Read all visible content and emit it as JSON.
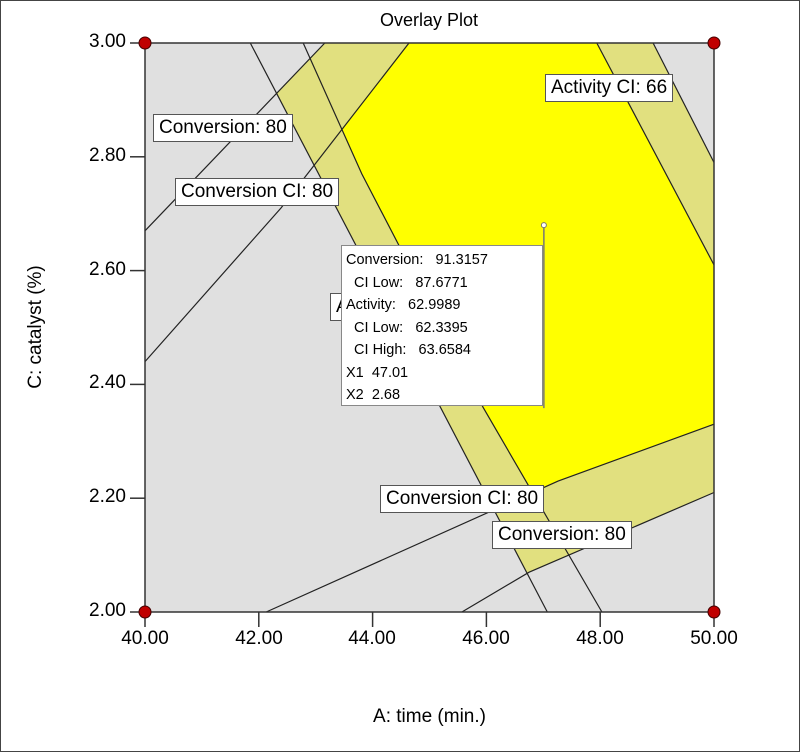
{
  "chart_data": {
    "type": "contour-overlay",
    "title": "Overlay Plot",
    "xlabel": "A: time (min.)",
    "ylabel": "C: catalyst (%)",
    "xlim": [
      40,
      50
    ],
    "ylim": [
      2,
      3
    ],
    "xticks": [
      "40.00",
      "42.00",
      "44.00",
      "46.00",
      "48.00",
      "50.00"
    ],
    "yticks": [
      "2.00",
      "2.20",
      "2.40",
      "2.60",
      "2.80",
      "3.00"
    ],
    "colors": {
      "background": "#e0e0e0",
      "ci_region": "#e1e07f",
      "feasible": "#ffff00",
      "design_point": "#c00000",
      "line": "#222222"
    },
    "contours": [
      {
        "id": "A",
        "label": "A",
        "points": [
          [
            41.85,
            3.0
          ],
          [
            47.07,
            2.0
          ]
        ]
      },
      {
        "id": "B",
        "points": [
          [
            42.78,
            3.0
          ],
          [
            43.81,
            2.77
          ],
          [
            45.94,
            2.36
          ],
          [
            48.03,
            2.0
          ]
        ]
      },
      {
        "id": "C",
        "points": [
          [
            47.94,
            3.0
          ],
          [
            50.0,
            2.61
          ]
        ]
      },
      {
        "id": "D",
        "label": "Activity CI: 66",
        "points": [
          [
            48.93,
            3.0
          ],
          [
            50.0,
            2.79
          ]
        ]
      },
      {
        "id": "E",
        "label": "Conversion: 80",
        "points": [
          [
            43.16,
            3.0
          ],
          [
            40.0,
            2.67
          ]
        ]
      },
      {
        "id": "F",
        "label": "Conversion CI: 80",
        "points": [
          [
            44.64,
            3.0
          ],
          [
            42.39,
            2.71
          ],
          [
            40.0,
            2.44
          ]
        ]
      },
      {
        "id": "G",
        "label": "Conversion CI: 80",
        "points": [
          [
            42.13,
            2.0
          ],
          [
            47.26,
            2.23
          ],
          [
            50.0,
            2.33
          ]
        ]
      },
      {
        "id": "H",
        "label": "Conversion: 80",
        "points": [
          [
            45.57,
            2.0
          ],
          [
            46.75,
            2.07
          ],
          [
            50.0,
            2.21
          ]
        ]
      }
    ],
    "design_points": [
      [
        40,
        3
      ],
      [
        50,
        3
      ],
      [
        40,
        2
      ],
      [
        50,
        2
      ]
    ],
    "flag": {
      "x": 47.01,
      "y": 2.68,
      "rows": [
        {
          "label": "Conversion:",
          "value": "91.3157"
        },
        {
          "label": "  CI Low:",
          "value": "87.6771"
        },
        {
          "label": "Activity:",
          "value": "62.9989"
        },
        {
          "label": "  CI Low:",
          "value": "62.3395"
        },
        {
          "label": "  CI High:",
          "value": "63.6584"
        },
        {
          "label": "X1",
          "value": "47.01"
        },
        {
          "label": "X2",
          "value": "2.68"
        }
      ]
    }
  }
}
